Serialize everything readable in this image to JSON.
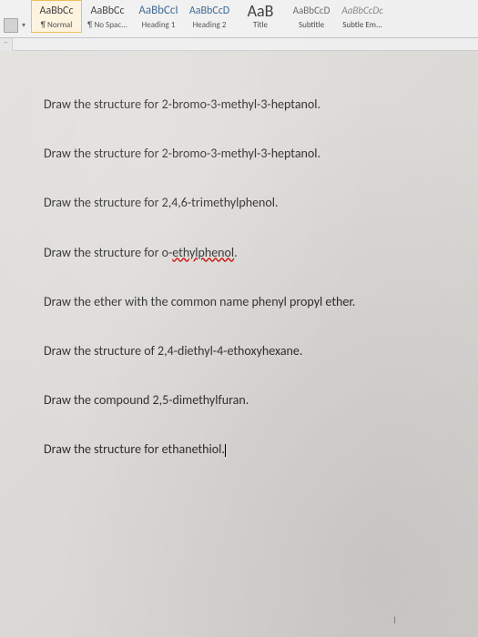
{
  "ribbon": {
    "styles": [
      {
        "preview": "AaBbCc",
        "label": "¶ Normal",
        "fontSize": "12px",
        "color": "#333",
        "selected": true
      },
      {
        "preview": "AaBbCc",
        "label": "¶ No Spac...",
        "fontSize": "12px",
        "color": "#333",
        "selected": false
      },
      {
        "preview": "AaBbCcI",
        "label": "Heading 1",
        "fontSize": "13px",
        "color": "#2e5c8a",
        "selected": false
      },
      {
        "preview": "AaBbCcD",
        "label": "Heading 2",
        "fontSize": "12px",
        "color": "#2e5c8a",
        "selected": false
      },
      {
        "preview": "AaB",
        "label": "Title",
        "fontSize": "18px",
        "color": "#333",
        "selected": false
      },
      {
        "preview": "AaBbCcD",
        "label": "Subtitle",
        "fontSize": "11px",
        "color": "#666",
        "selected": false
      },
      {
        "preview": "AaBbCcDc",
        "label": "Subtle Em...",
        "fontSize": "11px",
        "color": "#888",
        "fontStyle": "italic",
        "selected": false
      }
    ]
  },
  "document": {
    "lines": [
      {
        "text": "Draw the structure for 2-bromo-3-methyl-3-heptanol."
      },
      {
        "text": "Draw the structure for 2-bromo-3-methyl-3-heptanol."
      },
      {
        "text": "Draw the structure for 2,4,6-trimethylphenol."
      },
      {
        "prefix": "Draw the structure for o-",
        "underlined": "ethylphenol",
        "suffix": "."
      },
      {
        "text": "Draw the ether with the common name phenyl propyl ether."
      },
      {
        "text": "Draw the structure of 2,4-diethyl-4-ethoxyhexane."
      },
      {
        "text": "Draw the compound 2,5-dimethylfuran."
      },
      {
        "text": "Draw the structure for ethanethiol.",
        "cursor": true
      }
    ]
  },
  "footer": {
    "indicator": "I"
  }
}
